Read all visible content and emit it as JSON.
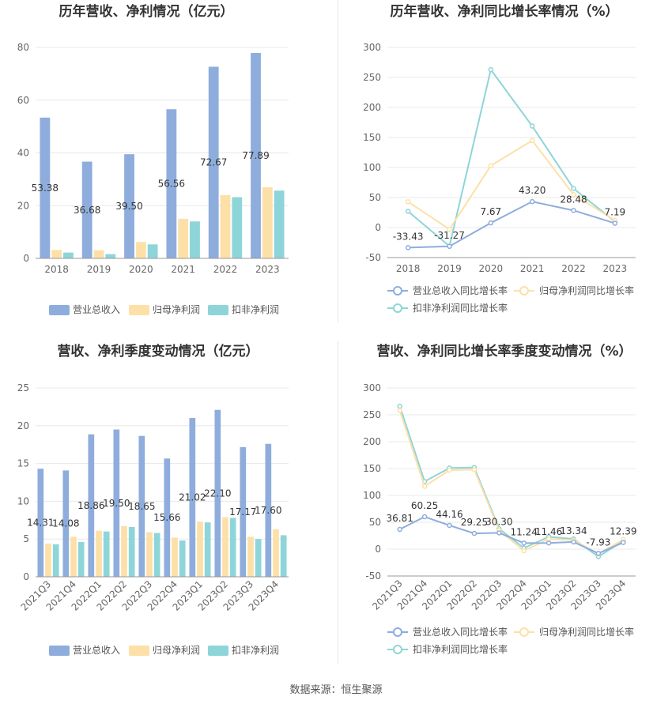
{
  "source": "数据来源：恒生聚源",
  "colors": {
    "blue": "#8eaddd",
    "orange": "#fde0a8",
    "teal": "#8dd5d9",
    "line_blue": "#8eaddd",
    "line_orange": "#fde0a8",
    "line_teal": "#8dd5d9",
    "grid": "#e8e8e8",
    "axis": "#999999"
  },
  "chart_data": [
    {
      "type": "bar",
      "title": "历年营收、净利情况（亿元）",
      "categories": [
        "2018",
        "2019",
        "2020",
        "2021",
        "2022",
        "2023"
      ],
      "ylim": [
        0,
        80
      ],
      "yticks": [
        0,
        20,
        40,
        60,
        80
      ],
      "series": [
        {
          "name": "营业总收入",
          "values": [
            53.38,
            36.68,
            39.5,
            56.56,
            72.67,
            77.89
          ],
          "labels": [
            "53.38",
            "36.68",
            "39.50",
            "56.56",
            "72.67",
            "77.89"
          ]
        },
        {
          "name": "归母净利润",
          "values": [
            3.2,
            3.1,
            6.2,
            15.0,
            24.0,
            27.0
          ]
        },
        {
          "name": "扣非净利润",
          "values": [
            2.2,
            1.6,
            5.3,
            14.0,
            23.2,
            25.7
          ]
        }
      ]
    },
    {
      "type": "line",
      "title": "历年营收、净利同比增长率情况（%）",
      "categories": [
        "2018",
        "2019",
        "2020",
        "2021",
        "2022",
        "2023"
      ],
      "ylim": [
        -50,
        300
      ],
      "yticks": [
        -50,
        0,
        50,
        100,
        150,
        200,
        250,
        300
      ],
      "series": [
        {
          "name": "营业总收入同比增长率",
          "values": [
            -33.43,
            -31.27,
            7.67,
            43.2,
            28.48,
            7.19
          ],
          "labels": [
            "-33.43",
            "-31.27",
            "7.67",
            "43.20",
            "28.48",
            "7.19"
          ]
        },
        {
          "name": "归母净利润同比增长率",
          "values": [
            43,
            -3,
            103,
            145,
            55,
            12
          ]
        },
        {
          "name": "扣非净利润同比增长率",
          "values": [
            27,
            -31,
            263,
            169,
            65,
            10
          ]
        }
      ]
    },
    {
      "type": "bar",
      "title": "营收、净利季度变动情况（亿元）",
      "categories": [
        "2021Q3",
        "2021Q4",
        "2022Q1",
        "2022Q2",
        "2022Q3",
        "2022Q4",
        "2023Q1",
        "2023Q2",
        "2023Q3",
        "2023Q4"
      ],
      "ylim": [
        0,
        25
      ],
      "yticks": [
        0,
        5,
        10,
        15,
        20,
        25
      ],
      "series": [
        {
          "name": "营业总收入",
          "values": [
            14.31,
            14.08,
            18.86,
            19.5,
            18.65,
            15.66,
            21.02,
            22.1,
            17.17,
            17.6
          ],
          "labels": [
            "14.31",
            "14.08",
            "18.86",
            "19.50",
            "18.65",
            "15.66",
            "21.02",
            "22.10",
            "17.17",
            "17.60"
          ]
        },
        {
          "name": "归母净利润",
          "values": [
            4.4,
            5.3,
            6.1,
            6.7,
            5.9,
            5.2,
            7.3,
            7.9,
            5.3,
            6.3
          ]
        },
        {
          "name": "扣非净利润",
          "values": [
            4.3,
            4.6,
            6.0,
            6.6,
            5.8,
            4.8,
            7.2,
            7.8,
            5.0,
            5.5
          ]
        }
      ]
    },
    {
      "type": "line",
      "title": "营收、净利同比增长率季度变动情况（%）",
      "categories": [
        "2021Q3",
        "2021Q4",
        "2022Q1",
        "2022Q2",
        "2022Q3",
        "2022Q4",
        "2023Q1",
        "2023Q2",
        "2023Q3",
        "2023Q4"
      ],
      "ylim": [
        -50,
        300
      ],
      "yticks": [
        -50,
        0,
        50,
        100,
        150,
        200,
        250,
        300
      ],
      "series": [
        {
          "name": "营业总收入同比增长率",
          "values": [
            36.81,
            60.25,
            44.16,
            29.25,
            30.3,
            11.24,
            11.46,
            13.34,
            -7.93,
            12.39
          ],
          "labels": [
            "36.81",
            "60.25",
            "44.16",
            "29.25",
            "30.30",
            "11.24",
            "11.46",
            "13.34",
            "-7.93",
            "12.39"
          ]
        },
        {
          "name": "归母净利润同比增长率",
          "values": [
            258,
            117,
            147,
            148,
            35,
            -3,
            19,
            17,
            -9,
            18
          ]
        },
        {
          "name": "扣非净利润同比增长率",
          "values": [
            266,
            126,
            151,
            152,
            38,
            2,
            23,
            19,
            -14,
            15
          ]
        }
      ]
    }
  ]
}
